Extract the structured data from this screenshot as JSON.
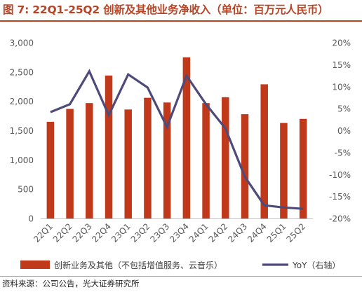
{
  "figure": {
    "title": "图 7: 22Q1-25Q2 创新及其他业务净收入（单位：百万元人民币）",
    "source": "资料来源：公司公告，光大证券研究所"
  },
  "chart_data": {
    "type": "bar",
    "categories": [
      "22Q1",
      "22Q2",
      "22Q3",
      "22Q4",
      "23Q1",
      "23Q2",
      "23Q3",
      "23Q4",
      "24Q1",
      "24Q2",
      "24Q3",
      "24Q4",
      "25Q1",
      "25Q2"
    ],
    "series": [
      {
        "name": "创新业务及其他（不包括增值服务、云音乐）",
        "type": "bar",
        "axis": "left",
        "color": "#c0391b",
        "values": [
          1650,
          1870,
          1970,
          2440,
          1860,
          2060,
          1980,
          2750,
          1970,
          2070,
          1780,
          2290,
          1630,
          1700
        ]
      },
      {
        "name": "YoY（右轴）",
        "type": "line",
        "axis": "right",
        "color": "#4e4b7a",
        "values": [
          4.2,
          6.0,
          13.5,
          3.5,
          12.8,
          9.8,
          0.8,
          12.5,
          6.0,
          0.5,
          -10.5,
          -17.0,
          -17.5,
          -17.8
        ]
      }
    ],
    "y_left": {
      "min": 0,
      "max": 3000,
      "ticks": [
        0,
        500,
        1000,
        1500,
        2000,
        2500,
        3000
      ],
      "tick_labels": [
        "0",
        "500",
        "1,000",
        "1,500",
        "2,000",
        "2,500",
        "3,000"
      ]
    },
    "y_right": {
      "min": -20,
      "max": 20,
      "ticks": [
        -20,
        -15,
        -10,
        -5,
        0,
        5,
        10,
        15,
        20
      ],
      "tick_labels": [
        "-20%",
        "-15%",
        "-10%",
        "-5%",
        "0%",
        "5%",
        "10%",
        "15%",
        "20%"
      ]
    },
    "grid": false,
    "legend_position": "bottom"
  }
}
